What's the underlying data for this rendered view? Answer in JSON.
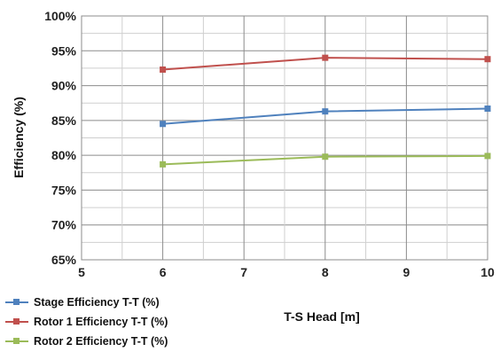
{
  "chart_data": {
    "type": "line",
    "xlabel": "T-S Head [m]",
    "ylabel": "Efficiency (%)",
    "xlim": [
      5,
      10
    ],
    "ylim": [
      65,
      100
    ],
    "x_ticks": [
      "5",
      "6",
      "7",
      "8",
      "9",
      "10"
    ],
    "y_ticks": [
      "65%",
      "70%",
      "75%",
      "80%",
      "85%",
      "90%",
      "95%",
      "100%"
    ],
    "grid": true,
    "legend_position": "bottom-left",
    "x": [
      6,
      8,
      10
    ],
    "series": [
      {
        "name": "Stage Efficiency T-T (%)",
        "color": "#4f81bd",
        "values": [
          84.5,
          86.3,
          86.7
        ]
      },
      {
        "name": "Rotor 1 Efficiency T-T (%)",
        "color": "#c0504d",
        "values": [
          92.3,
          94.0,
          93.8
        ]
      },
      {
        "name": "Rotor 2 Efficiency T-T (%)",
        "color": "#9bbb59",
        "values": [
          78.7,
          79.8,
          79.9
        ]
      }
    ]
  }
}
